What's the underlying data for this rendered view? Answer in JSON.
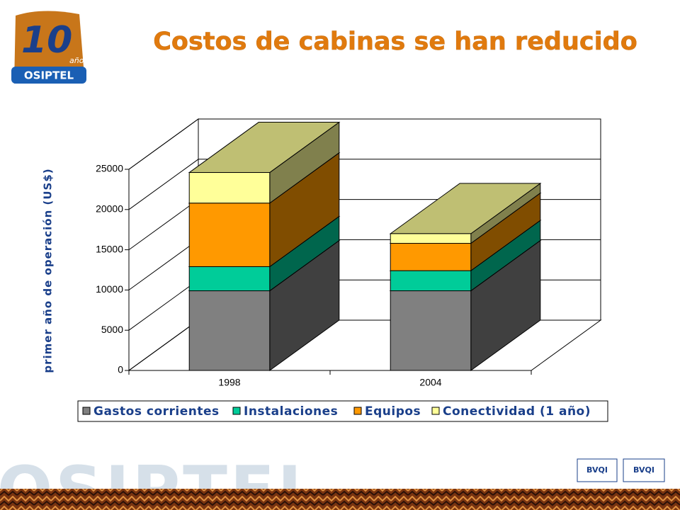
{
  "logo": {
    "number": "10",
    "text": "años",
    "brand": "OSIPTEL"
  },
  "watermark": "OSIPTEL",
  "badges": [
    "BVQI",
    "BVQI"
  ],
  "chart_data": {
    "type": "bar",
    "stacked": true,
    "title": "Costos de cabinas se han reducido",
    "y_label": "primer año de operación (US$)",
    "categories": [
      "1998",
      "2004"
    ],
    "series": [
      {
        "name": "Gastos corrientes",
        "color": "#808080",
        "values": [
          9900,
          9900
        ]
      },
      {
        "name": "Instalaciones",
        "color": "#00cc99",
        "values": [
          3000,
          2500
        ]
      },
      {
        "name": "Equipos",
        "color": "#ff9900",
        "values": [
          7900,
          3400
        ]
      },
      {
        "name": "Conectividad (1 año)",
        "color": "#ffff99",
        "values": [
          3800,
          1200
        ]
      }
    ],
    "ylim": [
      0,
      25000
    ],
    "yticks": [
      0,
      5000,
      10000,
      15000,
      20000,
      25000
    ],
    "grid": true
  }
}
